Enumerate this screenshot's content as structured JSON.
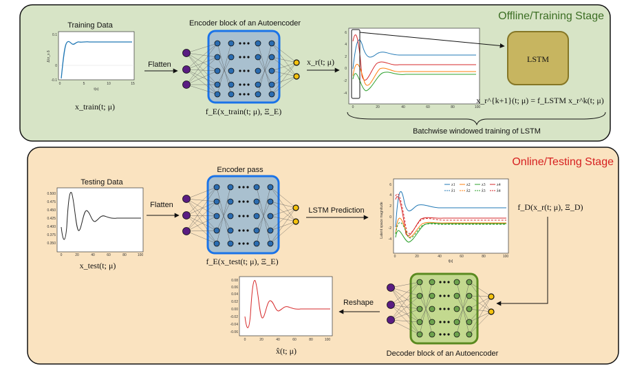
{
  "offline": {
    "title": "Offline/Training Stage",
    "training_data_label": "Training Data",
    "training_formula": "x_train(t; μ)",
    "flatten_label": "Flatten",
    "encoder_title": "Encoder block of an Autoencoder",
    "encoder_formula": "f_E(x_train(t; μ), Ξ_E)",
    "latent_formula": "x_r(t; μ)",
    "lstm_label": "LSTM",
    "lstm_formula": "x_r^{k+1}(t; μ) = f_LSTM x_r^k(t; μ)",
    "batch_label": "Batchwise windowed training of LSTM",
    "train_plot": {
      "ylabel": "Δ/σ_x  δ",
      "xlabel": "t(s)",
      "yticks": [
        "0.1",
        "0",
        "-0.1"
      ],
      "xticks": [
        "0",
        "5",
        "10",
        "15"
      ]
    },
    "latent_plot": {
      "yticks": [
        "6",
        "4",
        "2",
        "0",
        "-2",
        "-4"
      ],
      "xticks": [
        "0",
        "20",
        "40",
        "60",
        "80",
        "100"
      ]
    }
  },
  "online": {
    "title": "Online/Testing Stage",
    "testing_data_label": "Testing Data",
    "test_formula": "x_test(t; μ)",
    "flatten_label": "Flatten",
    "encoder_title": "Encoder pass",
    "encoder_formula": "f_E(x_test(t; μ), Ξ_E)",
    "lstm_pred_label": "LSTM Prediction",
    "decoder_formula": "f_D(x_r(t; μ), Ξ_D)",
    "decoder_title": "Decoder block of an Autoencoder",
    "reshape_label": "Reshape",
    "recon_formula": "x̂(t; μ)",
    "test_plot": {
      "yticks": [
        "0.500",
        "0.475",
        "0.450",
        "0.425",
        "0.400",
        "0.375",
        "0.350"
      ],
      "xticks": [
        "0",
        "20",
        "40",
        "60",
        "80",
        "100"
      ]
    },
    "pred_plot": {
      "ylabel": "Latent space magnitude",
      "xlabel": "t[s]",
      "yticks": [
        "6",
        "4",
        "2",
        "0",
        "-2",
        "-4"
      ],
      "xticks": [
        "0",
        "20",
        "40",
        "60",
        "80",
        "100"
      ],
      "legend": [
        "z1",
        "z2",
        "z3",
        "z4",
        "ẑ1",
        "ẑ2",
        "ẑ3",
        "ẑ4"
      ]
    },
    "recon_plot": {
      "yticks": [
        "0.08",
        "0.06",
        "0.04",
        "0.02",
        "0.00",
        "-0.02",
        "-0.04",
        "-0.06"
      ],
      "xticks": [
        "0",
        "20",
        "40",
        "60",
        "80",
        "100"
      ]
    }
  },
  "colors": {
    "offline_bg": "#d7e4c6",
    "online_bg": "#fae3c0",
    "offline_title": "#3c6e24",
    "online_title": "#d62020",
    "encoder_fill": "#a9c0cf",
    "encoder_border": "#1a73e8",
    "decoder_fill": "#c3d98f",
    "decoder_border": "#5a8a20",
    "lstm_fill": "#c7b560",
    "lstm_border": "#857625",
    "input_node": "#5a1d82",
    "output_node": "#f4c20d",
    "hidden_node": "#2b6cb0"
  }
}
